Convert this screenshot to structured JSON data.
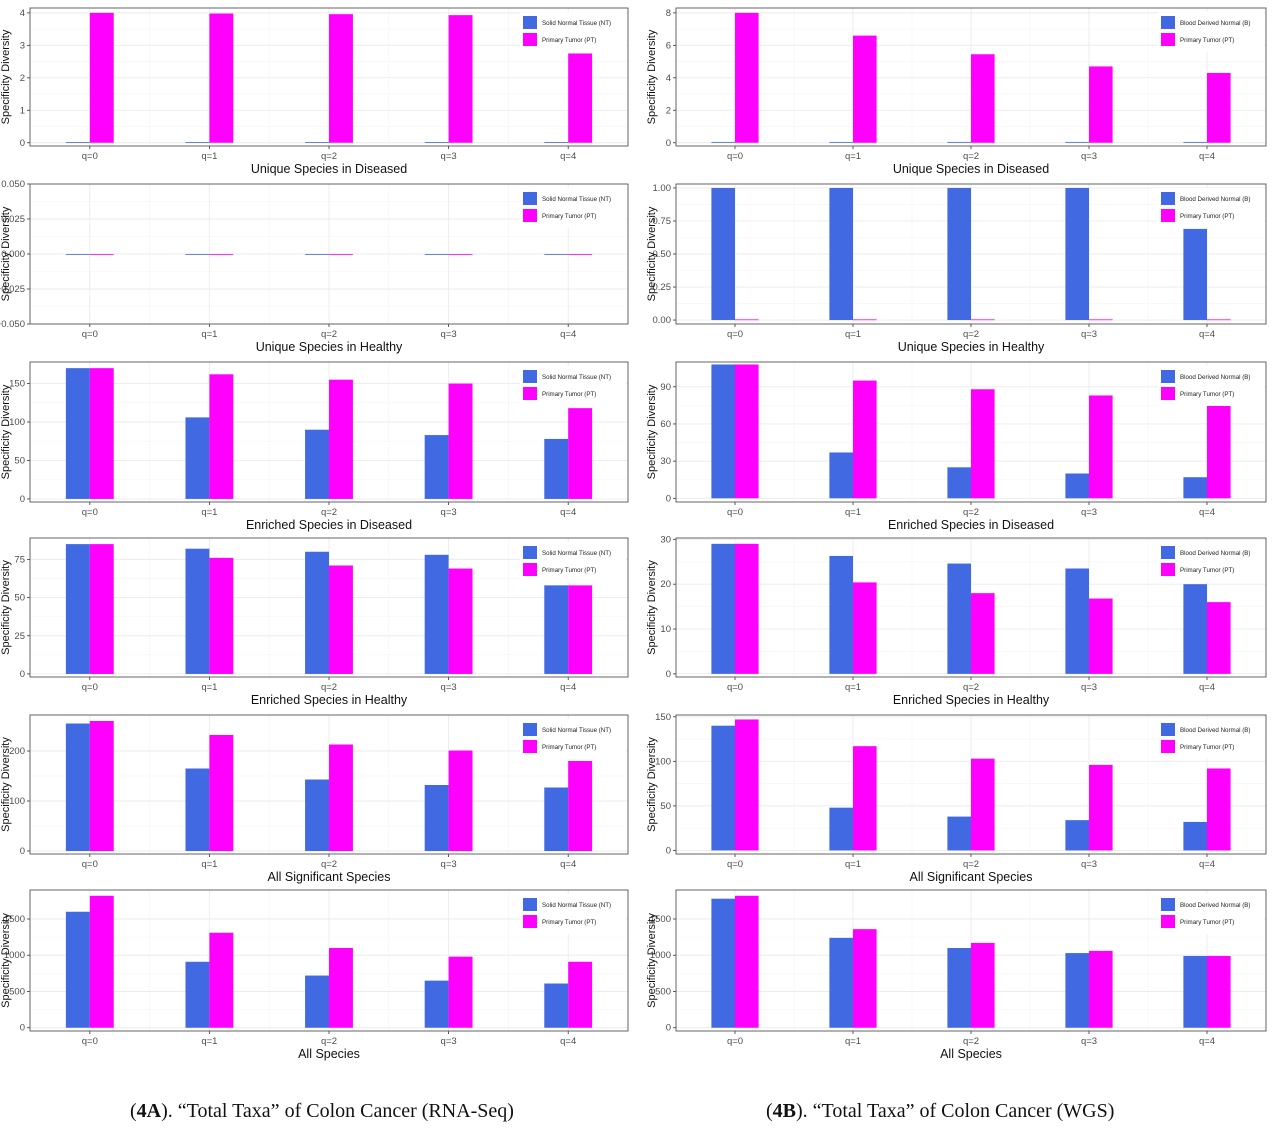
{
  "colors": {
    "normal": "#4169E1",
    "tumor": "#FF00FF",
    "grid": "#ebebeb",
    "axis": "#333333"
  },
  "captions": {
    "a": {
      "bold": "4A",
      "rest": "). “Total Taxa” of Colon Cancer (RNA-Seq)",
      "open": "("
    },
    "b": {
      "bold": "4B",
      "rest": "). “Total Taxa” of Colon Cancer (WGS)",
      "open": "("
    }
  },
  "chart_data": [
    {
      "type": "bar",
      "panel": "A",
      "row": 0,
      "title": "",
      "xlabel": "Unique Species in Diseased",
      "ylabel": "Specificity Diversity",
      "categories": [
        "q=0",
        "q=1",
        "q=2",
        "q=3",
        "q=4"
      ],
      "ylim": [
        -0.1,
        4.15
      ],
      "yticks": [
        0,
        1,
        2,
        3,
        4
      ],
      "ytick_labels": [
        "0",
        "1",
        "2",
        "3",
        "4"
      ],
      "series": [
        {
          "name": "Solid Normal Tissue (NT)",
          "values": [
            0.02,
            0.02,
            0.02,
            0.02,
            0.02
          ]
        },
        {
          "name": "Primary Tumor (PT)",
          "values": [
            4.0,
            3.98,
            3.96,
            3.93,
            2.75
          ]
        }
      ],
      "legend": "top-right",
      "grid": true
    },
    {
      "type": "bar",
      "panel": "A",
      "row": 1,
      "title": "",
      "xlabel": "Unique Species in Healthy",
      "ylabel": "Specificity Diversity",
      "categories": [
        "q=0",
        "q=1",
        "q=2",
        "q=3",
        "q=4"
      ],
      "ylim": [
        -0.05,
        0.05
      ],
      "yticks": [
        -0.05,
        -0.025,
        0,
        0.025,
        0.05
      ],
      "ytick_labels": [
        "−0.050",
        "−0.025",
        "0.000",
        "0.025",
        "0.050"
      ],
      "series": [
        {
          "name": "Solid Normal Tissue (NT)",
          "values": [
            0,
            0,
            0,
            0,
            0
          ]
        },
        {
          "name": "Primary Tumor (PT)",
          "values": [
            0,
            0,
            0,
            0,
            0
          ]
        }
      ],
      "legend": "top-right",
      "grid": true
    },
    {
      "type": "bar",
      "panel": "A",
      "row": 2,
      "title": "",
      "xlabel": "Enriched Species in Diseased",
      "ylabel": "Specificity Diversity",
      "categories": [
        "q=0",
        "q=1",
        "q=2",
        "q=3",
        "q=4"
      ],
      "ylim": [
        -4,
        178
      ],
      "yticks": [
        0,
        50,
        100,
        150
      ],
      "ytick_labels": [
        "0",
        "50",
        "100",
        "150"
      ],
      "series": [
        {
          "name": "Solid Normal Tissue (NT)",
          "values": [
            170,
            106,
            90,
            83,
            78
          ]
        },
        {
          "name": "Primary Tumor (PT)",
          "values": [
            170,
            162,
            155,
            150,
            118
          ]
        }
      ],
      "legend": "top-right",
      "grid": true
    },
    {
      "type": "bar",
      "panel": "A",
      "row": 3,
      "title": "",
      "xlabel": "Enriched Species in Healthy",
      "ylabel": "Specificity Diversity",
      "categories": [
        "q=0",
        "q=1",
        "q=2",
        "q=3",
        "q=4"
      ],
      "ylim": [
        -2,
        89
      ],
      "yticks": [
        0,
        25,
        50,
        75
      ],
      "ytick_labels": [
        "0",
        "25",
        "50",
        "75"
      ],
      "series": [
        {
          "name": "Solid Normal Tissue (NT)",
          "values": [
            85,
            82,
            80,
            78,
            58
          ]
        },
        {
          "name": "Primary Tumor (PT)",
          "values": [
            85,
            76,
            71,
            69,
            58
          ]
        }
      ],
      "legend": "top-right",
      "grid": true
    },
    {
      "type": "bar",
      "panel": "A",
      "row": 4,
      "title": "",
      "xlabel": "All Significant Species",
      "ylabel": "Specificity Diversity",
      "categories": [
        "q=0",
        "q=1",
        "q=2",
        "q=3",
        "q=4"
      ],
      "ylim": [
        -6,
        272
      ],
      "yticks": [
        0,
        100,
        200
      ],
      "ytick_labels": [
        "0",
        "100",
        "200"
      ],
      "series": [
        {
          "name": "Solid Normal Tissue (NT)",
          "values": [
            255,
            165,
            143,
            132,
            127
          ]
        },
        {
          "name": "Primary Tumor (PT)",
          "values": [
            260,
            232,
            213,
            201,
            180
          ]
        }
      ],
      "legend": "top-right",
      "grid": true
    },
    {
      "type": "bar",
      "panel": "A",
      "row": 5,
      "title": "",
      "xlabel": "All Species",
      "ylabel": "Specificity Diversity",
      "categories": [
        "q=0",
        "q=1",
        "q=2",
        "q=3",
        "q=4"
      ],
      "ylim": [
        -45,
        1900
      ],
      "yticks": [
        0,
        500,
        1000,
        1500
      ],
      "ytick_labels": [
        "0",
        "500",
        "1000",
        "1500"
      ],
      "series": [
        {
          "name": "Solid Normal Tissue (NT)",
          "values": [
            1600,
            910,
            720,
            650,
            610
          ]
        },
        {
          "name": "Primary Tumor (PT)",
          "values": [
            1820,
            1310,
            1100,
            980,
            910
          ]
        }
      ],
      "legend": "top-right",
      "grid": true
    },
    {
      "type": "bar",
      "panel": "B",
      "row": 0,
      "title": "",
      "xlabel": "Unique Species in Diseased",
      "ylabel": "Specificity Diversity",
      "categories": [
        "q=0",
        "q=1",
        "q=2",
        "q=3",
        "q=4"
      ],
      "ylim": [
        -0.2,
        8.3
      ],
      "yticks": [
        0,
        2,
        4,
        6,
        8
      ],
      "ytick_labels": [
        "0",
        "2",
        "4",
        "6",
        "8"
      ],
      "series": [
        {
          "name": "Blood Derived Normal (B)",
          "values": [
            0.05,
            0.05,
            0.05,
            0.05,
            0.05
          ]
        },
        {
          "name": "Primary Tumor (PT)",
          "values": [
            8.0,
            6.6,
            5.45,
            4.7,
            4.3
          ]
        }
      ],
      "legend": "top-right",
      "grid": true
    },
    {
      "type": "bar",
      "panel": "B",
      "row": 1,
      "title": "",
      "xlabel": "Unique Species in Healthy",
      "ylabel": "Specificity Diversity",
      "categories": [
        "q=0",
        "q=1",
        "q=2",
        "q=3",
        "q=4"
      ],
      "ylim": [
        -0.03,
        1.03
      ],
      "yticks": [
        0,
        0.25,
        0.5,
        0.75,
        1.0
      ],
      "ytick_labels": [
        "0.00",
        "0.25",
        "0.50",
        "0.75",
        "1.00"
      ],
      "series": [
        {
          "name": "Blood Derived Normal (B)",
          "values": [
            1.0,
            1.0,
            1.0,
            1.0,
            0.69
          ]
        },
        {
          "name": "Primary Tumor (PT)",
          "values": [
            0.005,
            0.005,
            0.005,
            0.005,
            0.005
          ]
        }
      ],
      "legend": "top-right",
      "grid": true
    },
    {
      "type": "bar",
      "panel": "B",
      "row": 2,
      "title": "",
      "xlabel": "Enriched Species in Diseased",
      "ylabel": "Specificity Diversity",
      "categories": [
        "q=0",
        "q=1",
        "q=2",
        "q=3",
        "q=4"
      ],
      "ylim": [
        -3,
        110
      ],
      "yticks": [
        0,
        30,
        60,
        90
      ],
      "ytick_labels": [
        "0",
        "30",
        "60",
        "90"
      ],
      "series": [
        {
          "name": "Blood Derived Normal (B)",
          "values": [
            108,
            37,
            25,
            20,
            17
          ]
        },
        {
          "name": "Primary Tumor (PT)",
          "values": [
            108,
            95,
            88,
            83,
            75
          ]
        }
      ],
      "legend": "top-right",
      "grid": true
    },
    {
      "type": "bar",
      "panel": "B",
      "row": 3,
      "title": "",
      "xlabel": "Enriched Species in Healthy",
      "ylabel": "Specificity Diversity",
      "categories": [
        "q=0",
        "q=1",
        "q=2",
        "q=3",
        "q=4"
      ],
      "ylim": [
        -0.7,
        30.3
      ],
      "yticks": [
        0,
        10,
        20,
        30
      ],
      "ytick_labels": [
        "0",
        "10",
        "20",
        "30"
      ],
      "series": [
        {
          "name": "Blood Derived Normal (B)",
          "values": [
            29,
            26.3,
            24.6,
            23.5,
            20
          ]
        },
        {
          "name": "Primary Tumor (PT)",
          "values": [
            29,
            20.4,
            18,
            16.8,
            16
          ]
        }
      ],
      "legend": "top-right",
      "grid": true
    },
    {
      "type": "bar",
      "panel": "B",
      "row": 4,
      "title": "",
      "xlabel": "All Significant Species",
      "ylabel": "Specificity Diversity",
      "categories": [
        "q=0",
        "q=1",
        "q=2",
        "q=3",
        "q=4"
      ],
      "ylim": [
        -4,
        152
      ],
      "yticks": [
        0,
        50,
        100,
        150
      ],
      "ytick_labels": [
        "0",
        "50",
        "100",
        "150"
      ],
      "series": [
        {
          "name": "Blood Derived Normal (B)",
          "values": [
            140,
            48,
            38,
            34,
            32
          ]
        },
        {
          "name": "Primary Tumor (PT)",
          "values": [
            147,
            117,
            103,
            96,
            92
          ]
        }
      ],
      "legend": "top-right",
      "grid": true
    },
    {
      "type": "bar",
      "panel": "B",
      "row": 5,
      "title": "",
      "xlabel": "All Species",
      "ylabel": "Specificity Diversity",
      "categories": [
        "q=0",
        "q=1",
        "q=2",
        "q=3",
        "q=4"
      ],
      "ylim": [
        -45,
        1900
      ],
      "yticks": [
        0,
        500,
        1000,
        1500
      ],
      "ytick_labels": [
        "0",
        "500",
        "1000",
        "1500"
      ],
      "series": [
        {
          "name": "Blood Derived Normal (B)",
          "values": [
            1780,
            1240,
            1100,
            1030,
            990
          ]
        },
        {
          "name": "Primary Tumor (PT)",
          "values": [
            1820,
            1360,
            1170,
            1060,
            990
          ]
        }
      ],
      "legend": "top-right",
      "grid": true
    }
  ]
}
